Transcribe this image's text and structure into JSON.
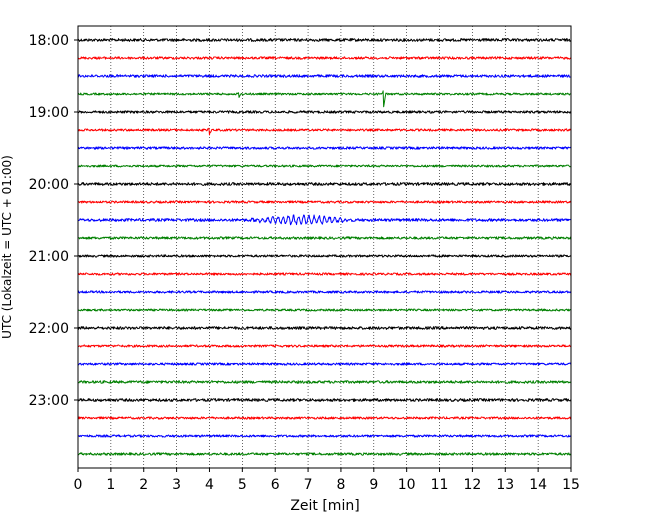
{
  "chart_data": {
    "type": "line",
    "title": "",
    "xlabel": "Zeit  [min]",
    "ylabel": "UTC (Lokalzeit = UTC + 01:00)",
    "xlim": [
      0,
      15
    ],
    "x_ticks": [
      "0",
      "1",
      "2",
      "3",
      "4",
      "5",
      "6",
      "7",
      "8",
      "9",
      "10",
      "11",
      "12",
      "13",
      "14",
      "15"
    ],
    "y_ticks": [
      "18:00",
      "19:00",
      "20:00",
      "21:00",
      "22:00",
      "23:00"
    ],
    "grid": "x-only, dotted",
    "legend": "none",
    "trace_colors": [
      "#000000",
      "#ff0000",
      "#0000ff",
      "#008000"
    ],
    "series": [
      {
        "start": "18:00",
        "noise": 1.4
      },
      {
        "start": "18:15",
        "noise": 1.2
      },
      {
        "start": "18:30",
        "noise": 1.3
      },
      {
        "start": "18:45",
        "noise": 1.0,
        "events": [
          {
            "t": 4.9,
            "amp": 4,
            "type": "spike"
          },
          {
            "t": 9.3,
            "amp": 12,
            "type": "spike"
          }
        ]
      },
      {
        "start": "19:00",
        "noise": 1.2
      },
      {
        "start": "19:15",
        "noise": 1.1,
        "events": [
          {
            "t": 4.0,
            "amp": 4,
            "type": "spike"
          }
        ]
      },
      {
        "start": "19:30",
        "noise": 1.2
      },
      {
        "start": "19:45",
        "noise": 1.0
      },
      {
        "start": "20:00",
        "noise": 1.4
      },
      {
        "start": "20:15",
        "noise": 1.1
      },
      {
        "start": "20:30",
        "noise": 1.4,
        "events": [
          {
            "t": 5.0,
            "t_end": 10.5,
            "amp": 4,
            "type": "quake"
          }
        ]
      },
      {
        "start": "20:45",
        "noise": 1.2
      },
      {
        "start": "21:00",
        "noise": 1.1
      },
      {
        "start": "21:15",
        "noise": 1.1
      },
      {
        "start": "21:30",
        "noise": 1.1
      },
      {
        "start": "21:45",
        "noise": 1.0
      },
      {
        "start": "22:00",
        "noise": 1.4
      },
      {
        "start": "22:15",
        "noise": 1.1
      },
      {
        "start": "22:30",
        "noise": 1.1
      },
      {
        "start": "22:45",
        "noise": 1.3
      },
      {
        "start": "23:00",
        "noise": 1.4
      },
      {
        "start": "23:15",
        "noise": 1.1
      },
      {
        "start": "23:30",
        "noise": 1.1
      },
      {
        "start": "23:45",
        "noise": 1.2
      }
    ]
  }
}
